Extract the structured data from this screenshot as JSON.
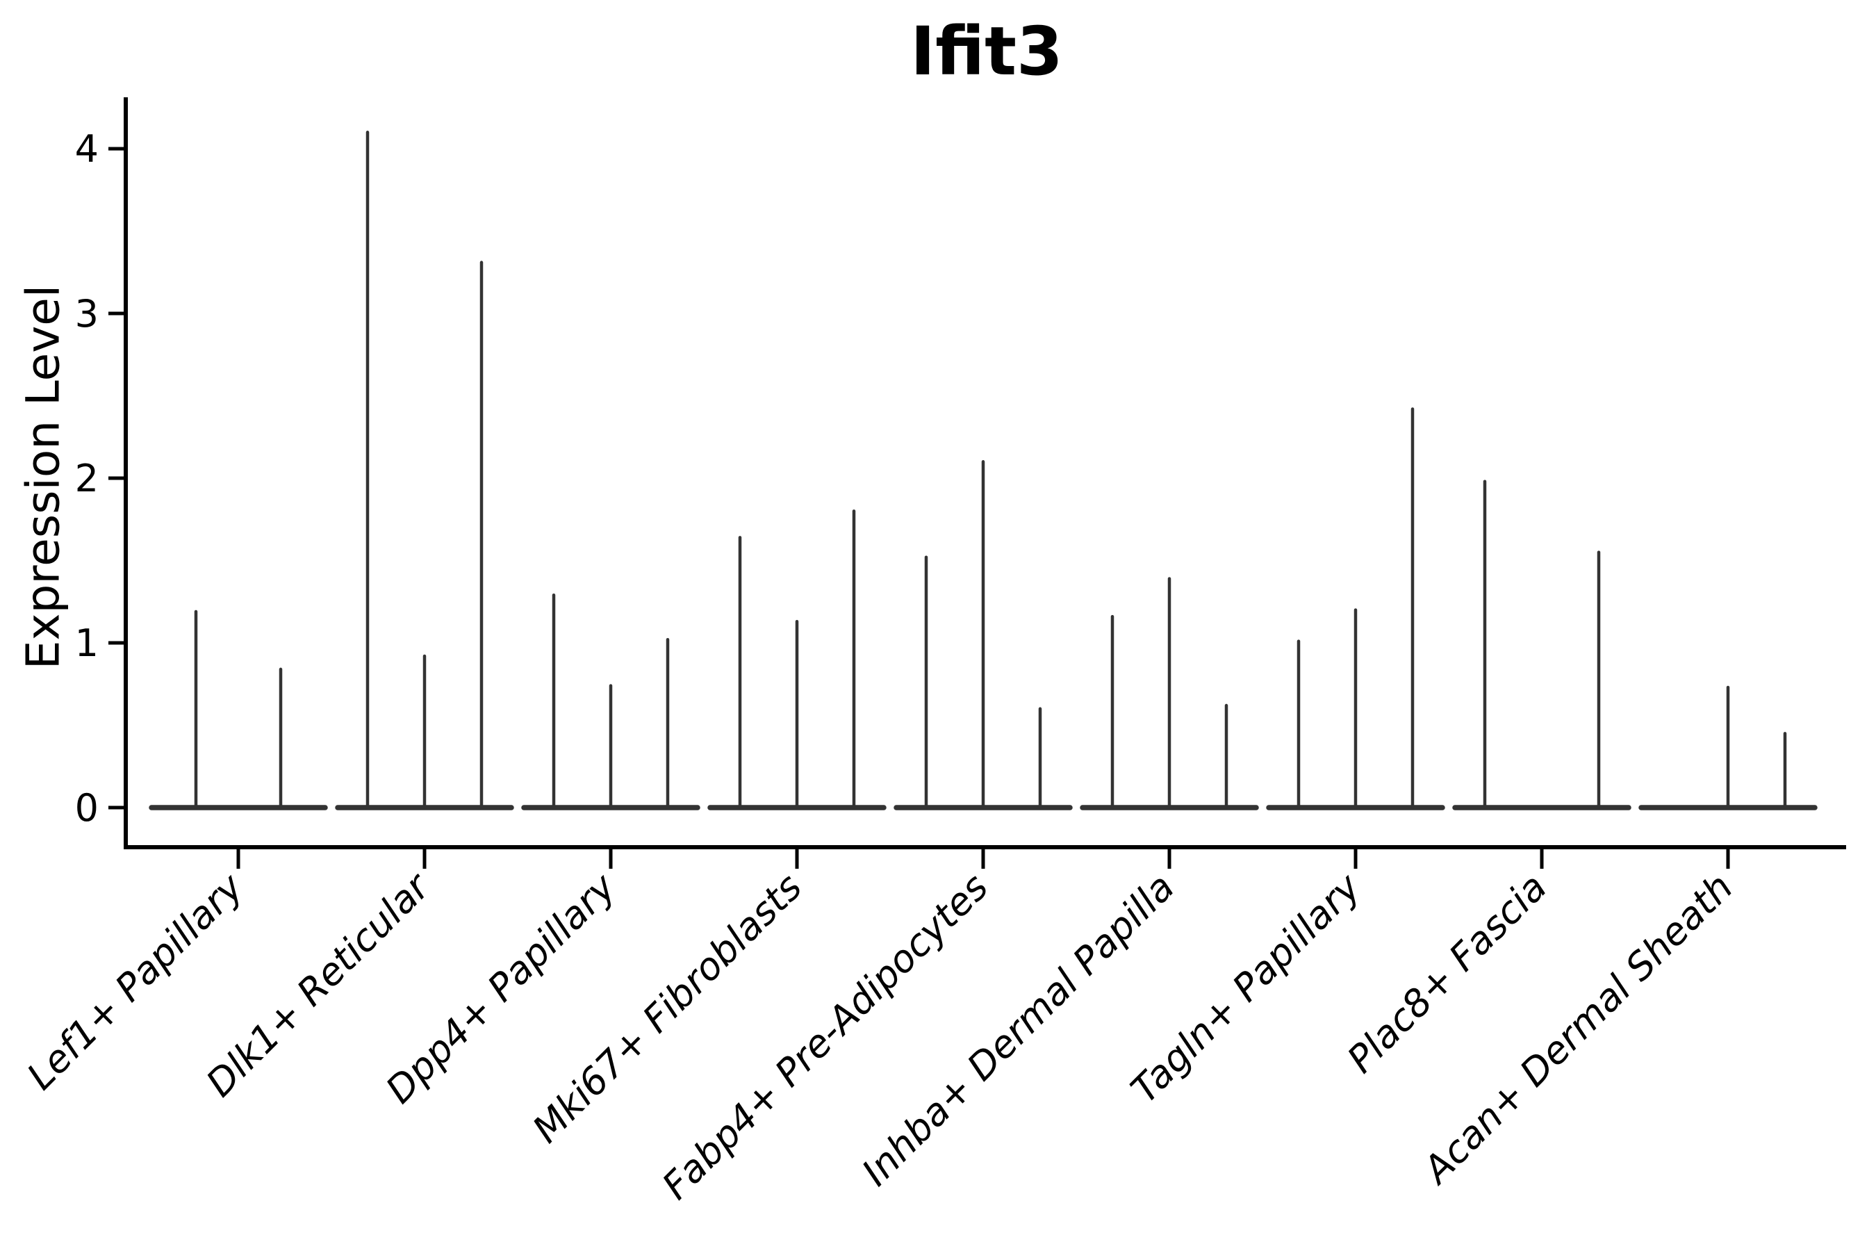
{
  "title": "Ifit3",
  "axes": {
    "ylabel": "Expression Level",
    "ytick_labels": [
      "0",
      "1",
      "2",
      "3",
      "4"
    ]
  },
  "chart_data": {
    "type": "violin",
    "title": "Ifit3",
    "xlabel": "",
    "ylabel": "Expression Level",
    "ylim": [
      0,
      4.3
    ],
    "yticks": [
      0,
      1,
      2,
      3,
      4
    ],
    "grid": false,
    "legend": "none",
    "style_note": "Seurat-style VlnPlot: nearly all cells at 0, so each violin renders as a flat baseline at 0 with a thin vertical spike up to the group maximum; 2-3 violins packed per category",
    "categories": [
      "Lef1+ Papillary",
      "Dlk1+ Reticular",
      "Dpp4+ Papillary",
      "Mki67+ Fibroblasts",
      "Fabp4+ Pre-Adipocytes",
      "Inhba+ Dermal Papilla",
      "Tagln+ Papillary",
      "Plac8+ Fascia",
      "Acan+ Dermal Sheath"
    ],
    "violins": [
      {
        "category": "Lef1+ Papillary",
        "spike_maxima": [
          1.19,
          0.84
        ]
      },
      {
        "category": "Dlk1+ Reticular",
        "spike_maxima": [
          4.1,
          0.92,
          3.31
        ]
      },
      {
        "category": "Dpp4+ Papillary",
        "spike_maxima": [
          1.29,
          0.74,
          1.02
        ]
      },
      {
        "category": "Mki67+ Fibroblasts",
        "spike_maxima": [
          1.64,
          1.13,
          1.8
        ]
      },
      {
        "category": "Fabp4+ Pre-Adipocytes",
        "spike_maxima": [
          1.52,
          2.1,
          0.6
        ]
      },
      {
        "category": "Inhba+ Dermal Papilla",
        "spike_maxima": [
          1.16,
          1.39,
          0.62
        ]
      },
      {
        "category": "Tagln+ Papillary",
        "spike_maxima": [
          1.01,
          1.2,
          2.42
        ]
      },
      {
        "category": "Plac8+ Fascia",
        "spike_maxima": [
          1.98,
          null,
          1.55
        ]
      },
      {
        "category": "Acan+ Dermal Sheath",
        "spike_maxima": [
          null,
          0.73,
          0.45
        ]
      }
    ],
    "colors": {
      "violin_line": "#333333",
      "axis": "#000000",
      "background": "#ffffff"
    }
  }
}
